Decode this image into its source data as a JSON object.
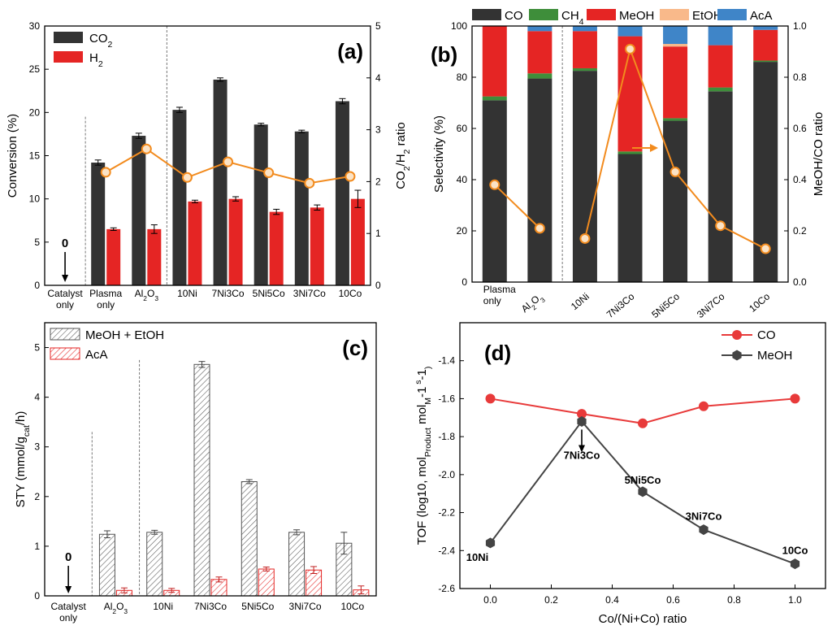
{
  "chart_data": [
    {
      "id": "a",
      "type": "bar",
      "panel_label": "(a)",
      "categories": [
        "Catalyst only",
        "Plasma only",
        "Al2O3",
        "10Ni",
        "7Ni3Co",
        "5Ni5Co",
        "3Ni7Co",
        "10Co"
      ],
      "category_lines": [
        [
          "Catalyst",
          "only"
        ],
        [
          "Plasma",
          "only"
        ],
        [
          "Al",
          "2",
          "O",
          "3"
        ],
        [
          "10Ni"
        ],
        [
          "7Ni3Co"
        ],
        [
          "5Ni5Co"
        ],
        [
          "3Ni7Co"
        ],
        [
          "10Co"
        ]
      ],
      "series": [
        {
          "name": "CO2",
          "name_main": "CO",
          "name_sub": "2",
          "color": "#333333",
          "values": [
            0,
            14.2,
            17.3,
            20.3,
            23.8,
            18.6,
            17.8,
            21.3
          ],
          "errors": [
            0,
            0.3,
            0.3,
            0.3,
            0.2,
            0.15,
            0.15,
            0.3
          ]
        },
        {
          "name": "H2",
          "name_main": "H",
          "name_sub": "2",
          "color": "#e52524",
          "values": [
            0,
            6.5,
            6.5,
            9.7,
            10.0,
            8.5,
            9.0,
            10.0
          ],
          "errors": [
            0,
            0.15,
            0.5,
            0.15,
            0.25,
            0.3,
            0.3,
            1.0
          ]
        }
      ],
      "ratio_line": {
        "color": "#f28b1e",
        "x_indices": [
          1,
          2,
          3,
          4,
          5,
          6,
          7
        ],
        "values": [
          2.18,
          2.63,
          2.08,
          2.38,
          2.17,
          1.97,
          2.1
        ]
      },
      "ylabel": "Conversion (%)",
      "ylim": [
        0,
        30
      ],
      "yticks": [
        0,
        5,
        10,
        15,
        20,
        25,
        30
      ],
      "y2label_parts": [
        "CO",
        "2",
        "/H",
        "2",
        " ratio"
      ],
      "y2lim": [
        0,
        5
      ],
      "y2ticks": [
        0,
        1,
        2,
        3,
        4,
        5
      ],
      "annotation": "0",
      "legend": "top-left"
    },
    {
      "id": "b",
      "type": "bar",
      "stacked": true,
      "panel_label": "(b)",
      "categories": [
        "Plasma only",
        "Al2O3",
        "10Ni",
        "7Ni3Co",
        "5Ni5Co",
        "3Ni7Co",
        "10Co"
      ],
      "category_lines": [
        [
          "Plasma",
          "only"
        ],
        [
          "Al",
          "2",
          "O",
          "3"
        ],
        [
          "10Ni"
        ],
        [
          "7Ni3Co"
        ],
        [
          "5Ni5Co"
        ],
        [
          "3Ni7Co"
        ],
        [
          "10Co"
        ]
      ],
      "series": [
        {
          "name": "CO",
          "name_main": "CO",
          "name_sub": "",
          "color": "#333333",
          "values": [
            71,
            79.5,
            82.5,
            50,
            63,
            74.5,
            86
          ]
        },
        {
          "name": "CH4",
          "name_main": "CH",
          "name_sub": "4",
          "color": "#3e8e3a",
          "values": [
            1.5,
            2,
            1,
            1,
            1,
            1.5,
            0.5
          ]
        },
        {
          "name": "MeOH",
          "name_main": "MeOH",
          "name_sub": "",
          "color": "#e52524",
          "values": [
            27.5,
            16.5,
            14.5,
            45,
            28,
            16.5,
            12
          ]
        },
        {
          "name": "EtOH",
          "name_main": "EtOH",
          "name_sub": "",
          "color": "#f9b98a",
          "values": [
            0,
            0,
            0,
            0,
            1,
            0,
            0
          ]
        },
        {
          "name": "AcA",
          "name_main": "AcA",
          "name_sub": "",
          "color": "#3f85c8",
          "values": [
            0,
            2,
            2,
            4,
            7,
            7.5,
            1.5
          ]
        }
      ],
      "ratio_segments": [
        [
          0,
          1
        ],
        [
          2,
          3,
          4,
          5,
          6
        ]
      ],
      "ratio_line": {
        "color": "#f28b1e",
        "values": [
          0.38,
          0.21,
          0.17,
          0.91,
          0.43,
          0.22,
          0.13
        ]
      },
      "ylabel": "Selectivity (%)",
      "ylim": [
        0,
        100
      ],
      "yticks": [
        0,
        20,
        40,
        60,
        80,
        100
      ],
      "y2label": "MeOH/CO ratio",
      "y2lim": [
        0,
        1.0
      ],
      "y2ticks": [
        "0.0",
        "0.2",
        "0.4",
        "0.6",
        "0.8",
        "1.0"
      ],
      "legend": "top"
    },
    {
      "id": "c",
      "type": "bar",
      "panel_label": "(c)",
      "categories": [
        "Catalyst only",
        "Al2O3",
        "10Ni",
        "7Ni3Co",
        "5Ni5Co",
        "3Ni7Co",
        "10Co"
      ],
      "category_lines": [
        [
          "Catalyst",
          "only"
        ],
        [
          "Al",
          "2",
          "O",
          "3"
        ],
        [
          "10Ni"
        ],
        [
          "7Ni3Co"
        ],
        [
          "5Ni5Co"
        ],
        [
          "3Ni7Co"
        ],
        [
          "10Co"
        ]
      ],
      "series": [
        {
          "name": "MeOH + EtOH",
          "color": "#555555",
          "values": [
            0,
            1.24,
            1.28,
            4.66,
            2.3,
            1.28,
            1.06
          ],
          "errors": [
            0,
            0.07,
            0.04,
            0.06,
            0.04,
            0.05,
            0.22
          ]
        },
        {
          "name": "AcA",
          "color": "#e52524",
          "values": [
            0,
            0.11,
            0.11,
            0.33,
            0.54,
            0.52,
            0.12
          ],
          "errors": [
            0,
            0.05,
            0.04,
            0.05,
            0.04,
            0.07,
            0.08
          ]
        }
      ],
      "ylabel_parts": [
        "STY (mmol/g",
        "cat",
        "/h)"
      ],
      "ylim": [
        0,
        5.5
      ],
      "yticks": [
        0,
        1,
        2,
        3,
        4,
        5
      ],
      "annotation": "0",
      "legend": "top-left"
    },
    {
      "id": "d",
      "type": "line",
      "panel_label": "(d)",
      "x": [
        0.0,
        0.3,
        0.5,
        0.7,
        1.0
      ],
      "series": [
        {
          "name": "CO",
          "color": "#e83a3a",
          "marker": "circle",
          "values": [
            -1.6,
            -1.68,
            -1.73,
            -1.64,
            -1.6
          ]
        },
        {
          "name": "MeOH",
          "color": "#444444",
          "marker": "hexagon",
          "values": [
            -2.36,
            -1.72,
            -2.09,
            -2.29,
            -2.47
          ]
        }
      ],
      "point_labels": [
        "10Ni",
        "7Ni3Co",
        "5Ni5Co",
        "3Ni7Co",
        "10Co"
      ],
      "xlabel": "Co/(Ni+Co) ratio",
      "xlim": [
        -0.1,
        1.1
      ],
      "xticks": [
        "0.0",
        "0.2",
        "0.4",
        "0.6",
        "0.8",
        "1.0"
      ],
      "ylabel_parts": [
        "TOF (log10, mol",
        "Product",
        " mol",
        "M",
        "-1",
        " s",
        "-1",
        ")"
      ],
      "ylim": [
        -2.6,
        -1.2
      ],
      "yticks": [
        "-2.6",
        "-2.4",
        "-2.2",
        "-2.0",
        "-1.8",
        "-1.6",
        "-1.4"
      ],
      "legend": "top-right"
    }
  ]
}
